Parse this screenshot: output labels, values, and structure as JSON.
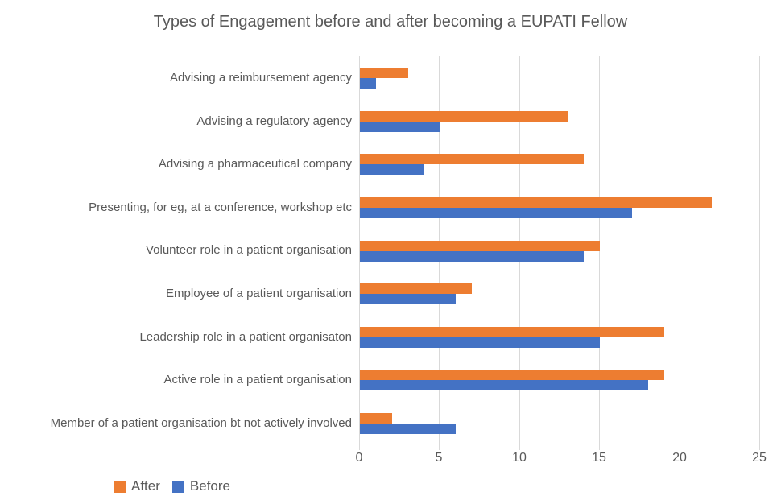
{
  "chart_data": {
    "type": "bar",
    "orientation": "horizontal",
    "title": "Types of Engagement before and after becoming a EUPATI Fellow",
    "categories": [
      "Advising a reimbursement agency",
      "Advising a regulatory agency",
      "Advising a pharmaceutical company",
      "Presenting, for eg, at a conference, workshop etc",
      "Volunteer role in a patient organisation",
      "Employee of a patient organisation",
      "Leadership role in a patient organisaton",
      "Active role in a patient organisation",
      "Member of a patient organisation bt not actively involved"
    ],
    "series": [
      {
        "name": "After",
        "color": "#ED7D31",
        "values": [
          3,
          13,
          14,
          22,
          15,
          7,
          19,
          19,
          2
        ]
      },
      {
        "name": "Before",
        "color": "#4472C4",
        "values": [
          1,
          5,
          4,
          17,
          14,
          6,
          15,
          18,
          6
        ]
      }
    ],
    "xlabel": "",
    "ylabel": "",
    "xlim": [
      0,
      25
    ],
    "xticks": [
      0,
      5,
      10,
      15,
      20,
      25
    ],
    "grid": "vertical",
    "legend_position": "bottom-left",
    "colors": {
      "grid": "#D9D9D9",
      "text": "#595959",
      "background": "#FFFFFF"
    }
  }
}
